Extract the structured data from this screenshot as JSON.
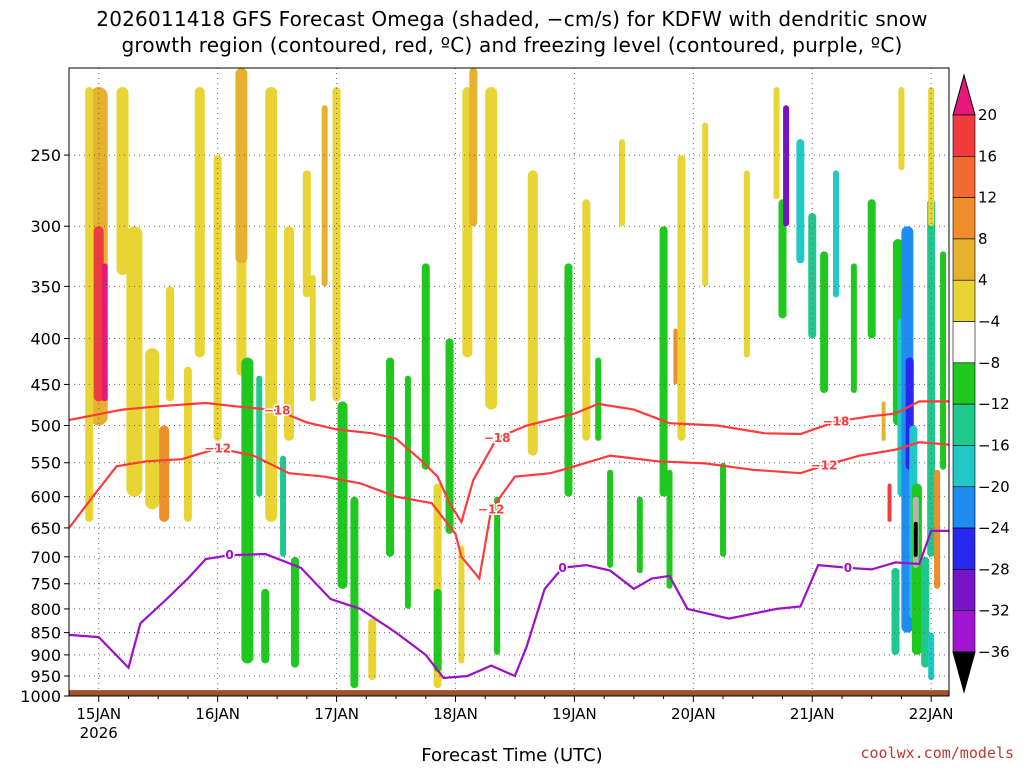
{
  "title": {
    "line1": "2026011418 GFS Forecast Omega (shaded, −cm/s) for KDFW with dendritic snow",
    "line2": "growth region (contoured, red, ºC) and freezing level (contoured, purple, ºC)"
  },
  "xlabel": "Forecast Time (UTC)",
  "credit": "coolwx.com/models",
  "chart_data": {
    "type": "heatmap",
    "title": "2026011418 GFS Forecast Omega (shaded, −cm/s) for KDFW with dendritic snow growth region (contoured, red, ºC) and freezing level (contoured, purple, ºC)",
    "xlabel": "Forecast Time (UTC)",
    "ylabel": "",
    "x_ticks": [
      "15JAN",
      "16JAN",
      "17JAN",
      "18JAN",
      "19JAN",
      "20JAN",
      "21JAN",
      "22JAN"
    ],
    "x_tick_sub": "2026",
    "x_range_days": [
      14.75,
      22.15
    ],
    "y_levels_hpa": [
      250,
      300,
      350,
      400,
      450,
      500,
      550,
      600,
      650,
      700,
      750,
      800,
      850,
      900,
      950,
      1000
    ],
    "y_range_hpa": [
      200,
      1000
    ],
    "y_scale": "log-pressure (inverted)",
    "grid": true,
    "colorbar": {
      "labels": [
        "20",
        "16",
        "12",
        "8",
        "4",
        "−4",
        "−8",
        "−12",
        "−16",
        "−20",
        "−24",
        "−28",
        "−32",
        "−36"
      ],
      "values": [
        20,
        16,
        12,
        8,
        4,
        -4,
        -8,
        -12,
        -16,
        -20,
        -24,
        -28,
        -32,
        -36
      ],
      "colors": [
        "#e7177b",
        "#f03c3c",
        "#f06a32",
        "#ee8e2a",
        "#e6b22d",
        "#e8d534",
        "#ffffff",
        "#1ec81e",
        "#1fc88c",
        "#20c8c8",
        "#1e8cf0",
        "#2828f0",
        "#7814c8",
        "#a014d2",
        "#b4b4b4",
        "#000000"
      ]
    },
    "contours": [
      {
        "name": "-18",
        "color": "#ff3a3a",
        "label": "−18",
        "points": [
          [
            14.75,
            493
          ],
          [
            15.2,
            480
          ],
          [
            15.5,
            476
          ],
          [
            15.9,
            472
          ],
          [
            16.15,
            476
          ],
          [
            16.5,
            481
          ],
          [
            16.75,
            496
          ],
          [
            17.0,
            505
          ],
          [
            17.3,
            510
          ],
          [
            17.5,
            517
          ],
          [
            17.7,
            545
          ],
          [
            17.85,
            570
          ],
          [
            17.95,
            610
          ],
          [
            18.05,
            640
          ],
          [
            18.15,
            575
          ],
          [
            18.35,
            516
          ],
          [
            18.6,
            500
          ],
          [
            19.0,
            485
          ],
          [
            19.2,
            473
          ],
          [
            19.5,
            480
          ],
          [
            19.8,
            497
          ],
          [
            20.2,
            500
          ],
          [
            20.6,
            510
          ],
          [
            20.9,
            511
          ],
          [
            21.2,
            495
          ],
          [
            21.5,
            488
          ],
          [
            21.7,
            485
          ],
          [
            21.9,
            470
          ],
          [
            22.15,
            470
          ]
        ]
      },
      {
        "name": "-12",
        "color": "#ff3a3a",
        "label": "−12",
        "points": [
          [
            14.75,
            650
          ],
          [
            14.95,
            600
          ],
          [
            15.15,
            555
          ],
          [
            15.4,
            548
          ],
          [
            15.7,
            545
          ],
          [
            16.0,
            530
          ],
          [
            16.3,
            540
          ],
          [
            16.6,
            565
          ],
          [
            16.9,
            570
          ],
          [
            17.2,
            580
          ],
          [
            17.5,
            600
          ],
          [
            17.8,
            610
          ],
          [
            18.0,
            660
          ],
          [
            18.05,
            700
          ],
          [
            18.2,
            740
          ],
          [
            18.3,
            620
          ],
          [
            18.5,
            570
          ],
          [
            18.8,
            565
          ],
          [
            19.0,
            555
          ],
          [
            19.3,
            540
          ],
          [
            19.7,
            548
          ],
          [
            20.1,
            551
          ],
          [
            20.5,
            560
          ],
          [
            20.9,
            565
          ],
          [
            21.1,
            554
          ],
          [
            21.4,
            540
          ],
          [
            21.7,
            532
          ],
          [
            21.9,
            522
          ],
          [
            22.15,
            525
          ]
        ]
      },
      {
        "name": "0",
        "color": "#9b10c8",
        "label": "0",
        "points": [
          [
            14.75,
            855
          ],
          [
            15.0,
            860
          ],
          [
            15.25,
            930
          ],
          [
            15.35,
            830
          ],
          [
            15.55,
            785
          ],
          [
            15.75,
            740
          ],
          [
            15.9,
            704
          ],
          [
            16.1,
            697
          ],
          [
            16.4,
            695
          ],
          [
            16.7,
            720
          ],
          [
            16.95,
            780
          ],
          [
            17.2,
            800
          ],
          [
            17.5,
            850
          ],
          [
            17.75,
            900
          ],
          [
            17.9,
            955
          ],
          [
            18.1,
            950
          ],
          [
            18.3,
            925
          ],
          [
            18.5,
            950
          ],
          [
            18.6,
            880
          ],
          [
            18.75,
            760
          ],
          [
            18.9,
            720
          ],
          [
            19.1,
            715
          ],
          [
            19.3,
            725
          ],
          [
            19.5,
            760
          ],
          [
            19.65,
            740
          ],
          [
            19.8,
            735
          ],
          [
            19.95,
            800
          ],
          [
            20.3,
            820
          ],
          [
            20.7,
            800
          ],
          [
            20.9,
            795
          ],
          [
            21.05,
            715
          ],
          [
            21.3,
            720
          ],
          [
            21.5,
            723
          ],
          [
            21.7,
            710
          ],
          [
            21.9,
            713
          ],
          [
            22.0,
            655
          ],
          [
            22.15,
            655
          ]
        ]
      }
    ]
  }
}
